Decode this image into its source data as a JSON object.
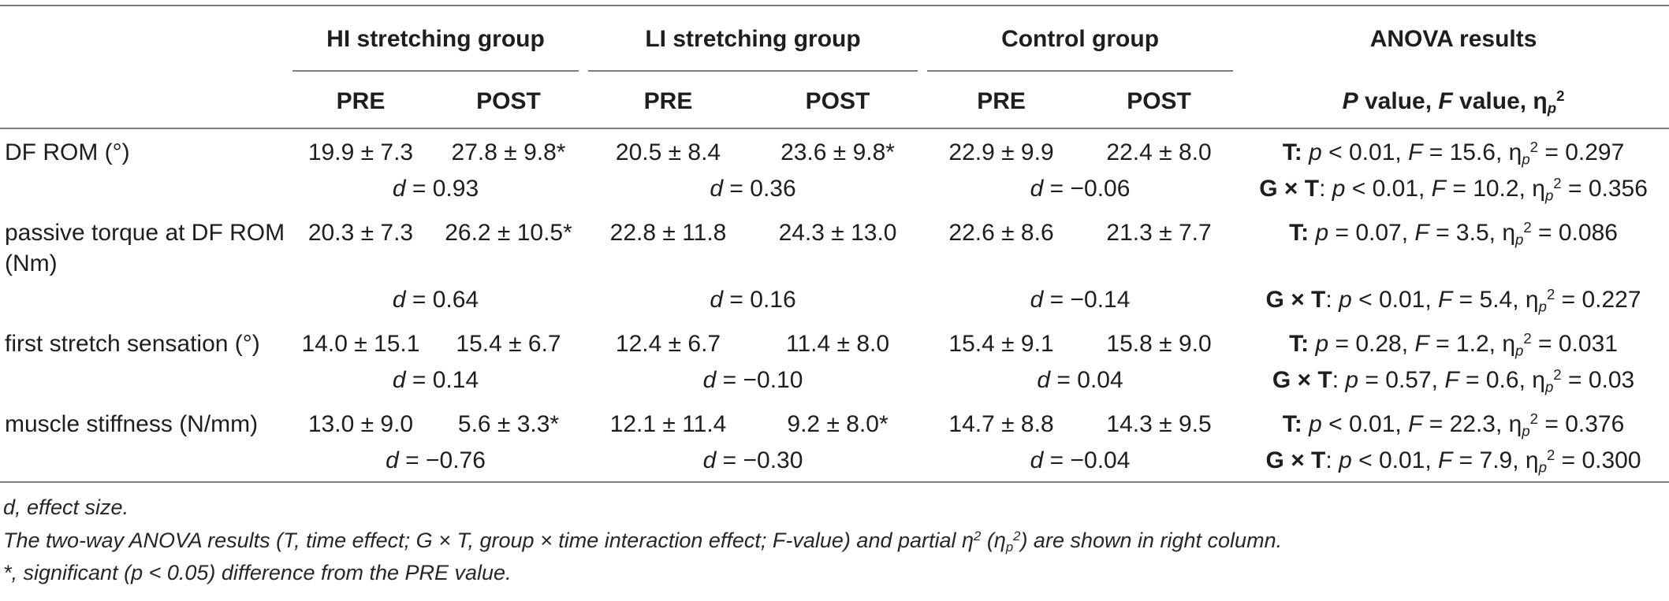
{
  "colors": {
    "text": "#1e1e1e",
    "rule": "#7d7d7d",
    "background": "#ffffff"
  },
  "table": {
    "groups": [
      "HI stretching group",
      "LI stretching group",
      "Control group"
    ],
    "anova_title": "ANOVA results",
    "pre": "PRE",
    "post": "POST",
    "anova_subheader": [
      {
        "t": "P",
        "b": true,
        "i": true
      },
      {
        "t": " value, ",
        "b": true
      },
      {
        "t": "F",
        "b": true,
        "i": true
      },
      {
        "t": " value, ",
        "b": true
      },
      {
        "t": "η",
        "b": true
      },
      {
        "t": "p",
        "b": true,
        "i": true,
        "sub": true
      },
      {
        "t": "2",
        "b": true,
        "sup": true
      }
    ],
    "d_d": "d",
    "d_eq": " = ",
    "rows": [
      {
        "label": "DF ROM (°)",
        "values": [
          "19.9 ± 7.3",
          "27.8 ± 9.8*",
          "20.5 ± 8.4",
          "23.6 ± 9.8*",
          "22.9 ± 9.9",
          "22.4 ± 8.0"
        ],
        "time": [
          {
            "t": "T: ",
            "b": true
          },
          {
            "t": "p",
            "i": true
          },
          {
            "t": " < 0.01, "
          },
          {
            "t": "F",
            "i": true
          },
          {
            "t": " = 15.6, "
          },
          {
            "t": "η"
          },
          {
            "t": "p",
            "i": true,
            "sub": true
          },
          {
            "t": "2",
            "sup": true
          },
          {
            "t": " = 0.297"
          }
        ],
        "d": [
          "0.93",
          "0.36",
          "−0.06"
        ],
        "interaction": [
          {
            "t": "G × T",
            "b": true
          },
          {
            "t": ": "
          },
          {
            "t": "p",
            "i": true
          },
          {
            "t": " < 0.01, "
          },
          {
            "t": "F",
            "i": true
          },
          {
            "t": " = 10.2, "
          },
          {
            "t": "η"
          },
          {
            "t": "p",
            "i": true,
            "sub": true
          },
          {
            "t": "2",
            "sup": true
          },
          {
            "t": " = 0.356"
          }
        ]
      },
      {
        "label": "passive torque at DF ROM (Nm)",
        "values": [
          "20.3 ± 7.3",
          "26.2 ± 10.5*",
          "22.8 ± 11.8",
          "24.3 ± 13.0",
          "22.6 ± 8.6",
          "21.3 ± 7.7"
        ],
        "time": [
          {
            "t": "T: ",
            "b": true
          },
          {
            "t": "p",
            "i": true
          },
          {
            "t": " = 0.07, "
          },
          {
            "t": "F",
            "i": true
          },
          {
            "t": " = 3.5, "
          },
          {
            "t": "η"
          },
          {
            "t": "p",
            "i": true,
            "sub": true
          },
          {
            "t": "2",
            "sup": true
          },
          {
            "t": " = 0.086"
          }
        ],
        "d": [
          "0.64",
          "0.16",
          "−0.14"
        ],
        "interaction": [
          {
            "t": "G × T",
            "b": true
          },
          {
            "t": ": "
          },
          {
            "t": "p",
            "i": true
          },
          {
            "t": " < 0.01, "
          },
          {
            "t": "F",
            "i": true
          },
          {
            "t": " = 5.4, "
          },
          {
            "t": "η"
          },
          {
            "t": "p",
            "i": true,
            "sub": true
          },
          {
            "t": "2",
            "sup": true
          },
          {
            "t": " = 0.227"
          }
        ]
      },
      {
        "label": "first stretch sensation (°)",
        "values": [
          "14.0 ± 15.1",
          "15.4 ± 6.7",
          "12.4 ± 6.7",
          "11.4 ± 8.0",
          "15.4 ± 9.1",
          "15.8 ± 9.0"
        ],
        "time": [
          {
            "t": "T: ",
            "b": true
          },
          {
            "t": "p",
            "i": true
          },
          {
            "t": " = 0.28, "
          },
          {
            "t": "F",
            "i": true
          },
          {
            "t": " = 1.2, "
          },
          {
            "t": "η"
          },
          {
            "t": "p",
            "i": true,
            "sub": true
          },
          {
            "t": "2",
            "sup": true
          },
          {
            "t": " = 0.031"
          }
        ],
        "d": [
          "0.14",
          "−0.10",
          "0.04"
        ],
        "interaction": [
          {
            "t": "G × T",
            "b": true
          },
          {
            "t": ": "
          },
          {
            "t": "p",
            "i": true
          },
          {
            "t": " = 0.57, "
          },
          {
            "t": "F",
            "i": true
          },
          {
            "t": " = 0.6, "
          },
          {
            "t": "η"
          },
          {
            "t": "p",
            "i": true,
            "sub": true
          },
          {
            "t": "2",
            "sup": true
          },
          {
            "t": " = 0.03"
          }
        ]
      },
      {
        "label": "muscle stiffness (N/mm)",
        "values": [
          "13.0 ± 9.0",
          "5.6 ± 3.3*",
          "12.1 ± 11.4",
          "9.2 ± 8.0*",
          "14.7 ± 8.8",
          "14.3 ± 9.5"
        ],
        "time": [
          {
            "t": "T: ",
            "b": true
          },
          {
            "t": "p",
            "i": true
          },
          {
            "t": " < 0.01, "
          },
          {
            "t": "F",
            "i": true
          },
          {
            "t": " = 22.3, "
          },
          {
            "t": "η"
          },
          {
            "t": "p",
            "i": true,
            "sub": true
          },
          {
            "t": "2",
            "sup": true
          },
          {
            "t": " = 0.376"
          }
        ],
        "d": [
          "−0.76",
          "−0.30",
          "−0.04"
        ],
        "interaction": [
          {
            "t": "G × T",
            "b": true
          },
          {
            "t": ": "
          },
          {
            "t": "p",
            "i": true
          },
          {
            "t": " < 0.01, "
          },
          {
            "t": "F",
            "i": true
          },
          {
            "t": " = 7.9, "
          },
          {
            "t": "η"
          },
          {
            "t": "p",
            "i": true,
            "sub": true
          },
          {
            "t": "2",
            "sup": true
          },
          {
            "t": " = 0.300"
          }
        ]
      }
    ]
  },
  "footnotes": [
    [
      {
        "t": "d, effect size."
      }
    ],
    [
      {
        "t": "The two-way ANOVA results (T, time effect; G × T, group × time interaction effect; F-value) and partial η"
      },
      {
        "t": "2",
        "sup": true
      },
      {
        "t": " (η"
      },
      {
        "t": "p",
        "sub": true
      },
      {
        "t": "2",
        "sup": true
      },
      {
        "t": ") are shown in right column."
      }
    ],
    [
      {
        "t": "*, significant (p < 0.05) difference from the PRE value."
      }
    ]
  ]
}
